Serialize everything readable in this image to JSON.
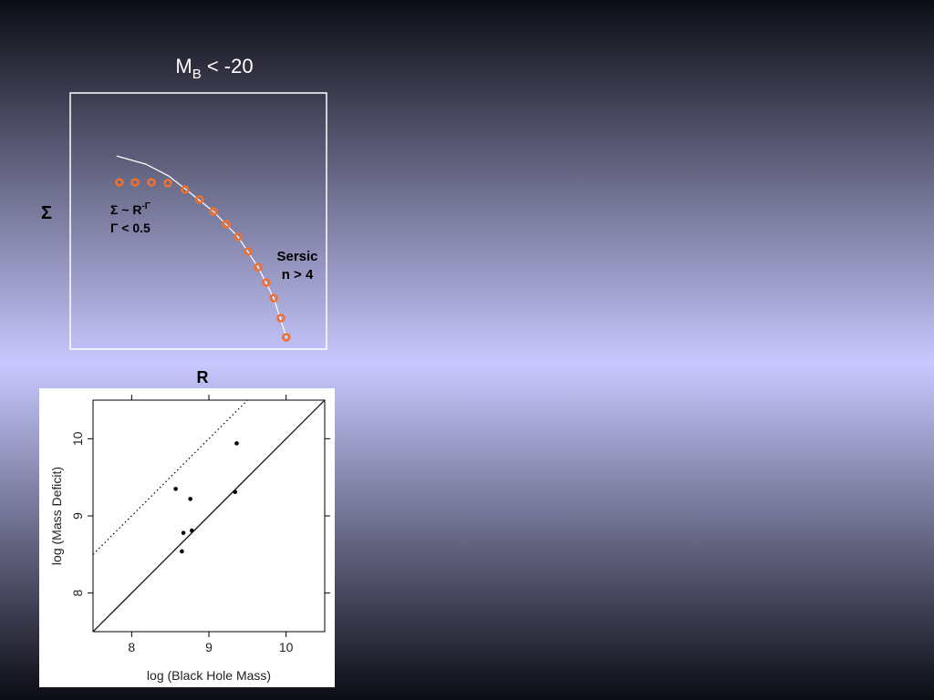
{
  "chart_data": [
    {
      "type": "profile",
      "title": "M",
      "title_sub": "B",
      "title_rest": " < -20",
      "ylabel": "Σ",
      "xlabel": "R",
      "xlim": [
        0,
        100
      ],
      "ylim": [
        0,
        100
      ],
      "annotations": [
        {
          "text": "Σ ~ R",
          "sup": "-Γ"
        },
        {
          "text": "Γ < 0.5"
        },
        {
          "text": "Sersic"
        },
        {
          "text": "n > 4"
        }
      ],
      "series": [
        {
          "kind": "line",
          "color": "#ffffff",
          "x": [
            18.1,
            29.5,
            38.4,
            44.8,
            55.9,
            65.5,
            73.3,
            79.4,
            84.3
          ],
          "values": [
            75.4,
            72.2,
            67.6,
            62.6,
            53.7,
            43.8,
            32.0,
            19.9,
            4.6
          ]
        },
        {
          "kind": "points",
          "color": "#f07030",
          "x": [
            19.2,
            25.3,
            31.7,
            38.1,
            44.8,
            50.5,
            55.9,
            60.9,
            65.5,
            69.4,
            73.3,
            76.5,
            79.4,
            82.2,
            84.3
          ],
          "values": [
            65.1,
            65.1,
            65.1,
            64.8,
            62.3,
            58.4,
            53.7,
            48.8,
            43.8,
            38.1,
            32.0,
            26.0,
            19.9,
            12.1,
            4.6
          ]
        }
      ]
    },
    {
      "type": "scatter",
      "xlabel": "log (Black Hole Mass)",
      "ylabel": "log (Mass Deficit)",
      "xlim": [
        7.5,
        10.5
      ],
      "ylim": [
        7.5,
        10.5
      ],
      "xticks": [
        8,
        9,
        10
      ],
      "yticks": [
        8,
        9,
        10
      ],
      "series": [
        {
          "kind": "points",
          "color": "#000000",
          "x": [
            8.57,
            8.76,
            9.36,
            9.34,
            8.67,
            8.78,
            8.65
          ],
          "values": [
            9.35,
            9.22,
            9.94,
            9.31,
            8.78,
            8.81,
            8.54
          ]
        },
        {
          "kind": "line",
          "style": "solid",
          "color": "#000000",
          "x": [
            7.5,
            10.5
          ],
          "values": [
            7.5,
            10.5
          ]
        },
        {
          "kind": "line",
          "style": "dotted",
          "color": "#000000",
          "x": [
            7.5,
            9.5
          ],
          "values": [
            8.5,
            10.5
          ]
        }
      ]
    }
  ]
}
